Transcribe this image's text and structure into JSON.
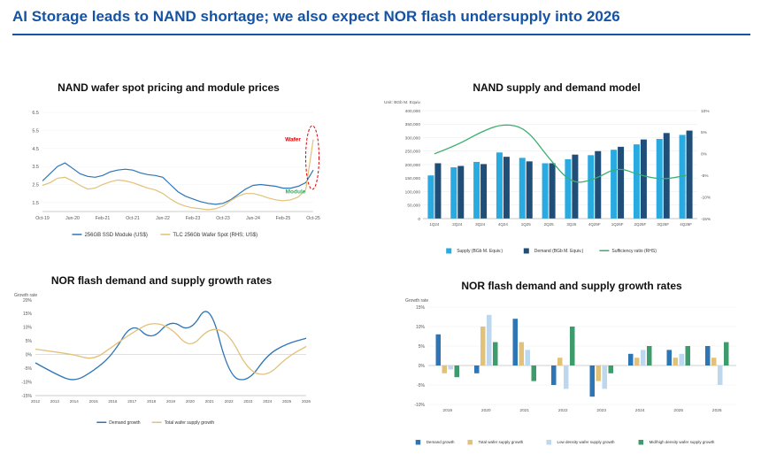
{
  "page": {
    "title": "AI Storage leads to NAND shortage; we also expect NOR flash undersupply into 2026"
  },
  "colors": {
    "title_blue": "#1553A5",
    "module_blue": "#2E75B6",
    "wafer_yellow": "#E2C178",
    "supply_light_blue": "#29ABE2",
    "demand_dark_blue": "#1F4E79",
    "sufficiency_green": "#3BAE6E",
    "annotation_red": "#E00000",
    "low_density_light_blue": "#BDD7EE",
    "mid_high_green": "#3E9B6C"
  },
  "chart_data": [
    {
      "id": "nand-wafer-module-pricing",
      "type": "line",
      "title": "NAND wafer spot pricing and module prices",
      "x": [
        "Oct-19",
        "Dec-19",
        "Feb-20",
        "Apr-20",
        "Jun-20",
        "Aug-20",
        "Oct-20",
        "Dec-20",
        "Feb-21",
        "Apr-21",
        "Jun-21",
        "Aug-21",
        "Oct-21",
        "Dec-21",
        "Feb-22",
        "Apr-22",
        "Jun-22",
        "Aug-22",
        "Oct-22",
        "Dec-22",
        "Feb-23",
        "Apr-23",
        "Jun-23",
        "Aug-23",
        "Oct-23",
        "Dec-23",
        "Feb-24",
        "Apr-24",
        "Jun-24",
        "Aug-24",
        "Oct-24",
        "Dec-24",
        "Feb-25",
        "Apr-25",
        "Jun-25",
        "Aug-25",
        "Oct-25"
      ],
      "x_tick_every": 4,
      "y_ticks": [
        1.5,
        2.5,
        3.5,
        4.5,
        5.5,
        6.5
      ],
      "ylim": [
        1.0,
        6.8
      ],
      "grid": false,
      "legend_position": "bottom",
      "series": [
        {
          "name": "256GB SSD Module (US$)",
          "color": "#2E75B6",
          "values": [
            2.7,
            3.1,
            3.5,
            3.7,
            3.4,
            3.1,
            2.95,
            2.9,
            3.0,
            3.2,
            3.3,
            3.35,
            3.3,
            3.15,
            3.05,
            3.0,
            2.9,
            2.5,
            2.1,
            1.85,
            1.7,
            1.55,
            1.45,
            1.4,
            1.45,
            1.65,
            1.95,
            2.25,
            2.45,
            2.5,
            2.45,
            2.4,
            2.3,
            2.3,
            2.4,
            2.6,
            3.3
          ]
        },
        {
          "name": "TLC 256Gb Wafer Spot (RHS; US$)",
          "color": "#E2C178",
          "values": [
            2.45,
            2.6,
            2.85,
            2.9,
            2.7,
            2.45,
            2.25,
            2.3,
            2.5,
            2.65,
            2.75,
            2.7,
            2.6,
            2.45,
            2.3,
            2.2,
            2.0,
            1.7,
            1.45,
            1.3,
            1.2,
            1.15,
            1.1,
            1.15,
            1.3,
            1.6,
            1.85,
            2.0,
            2.0,
            1.9,
            1.75,
            1.65,
            1.6,
            1.65,
            1.8,
            2.2,
            5.0
          ]
        }
      ],
      "annotations": [
        {
          "text": "Wafer",
          "color": "#E00000"
        },
        {
          "text": "Module",
          "color": "#2FAE5B"
        }
      ]
    },
    {
      "id": "nand-supply-demand-model",
      "type": "bar-line",
      "title": "NAND supply and demand model",
      "unit_label": "Unit: BGb M. Equiv.",
      "categories": [
        "1Q24",
        "2Q24",
        "3Q24",
        "4Q24",
        "1Q25",
        "2Q25",
        "3Q25",
        "4Q25F",
        "1Q26F",
        "2Q26F",
        "3Q26F",
        "4Q26F"
      ],
      "left_ticks": [
        "0",
        "50,000",
        "100,000",
        "150,000",
        "200,000",
        "250,000",
        "300,000",
        "350,000",
        "400,000"
      ],
      "left_max": 400000,
      "right_ticks": [
        "-15%",
        "-10%",
        "-5%",
        "0%",
        "5%",
        "10%"
      ],
      "right_lim": [
        -15,
        10
      ],
      "grid": true,
      "legend_position": "bottom",
      "series": [
        {
          "name": "Supply (BGb M. Equiv.)",
          "type": "bar",
          "color": "#29ABE2",
          "values": [
            160000,
            190000,
            210000,
            245000,
            225000,
            205000,
            220000,
            235000,
            255000,
            275000,
            295000,
            310000
          ]
        },
        {
          "name": "Demand (BGb M. Equiv.)",
          "type": "bar",
          "color": "#1F4E79",
          "values": [
            205000,
            195000,
            202000,
            229000,
            212000,
            205000,
            237000,
            250000,
            266000,
            293000,
            317000,
            326000
          ]
        },
        {
          "name": "Sufficiency ratio (RHS)",
          "type": "line",
          "axis": "right",
          "color": "#3BAE6E",
          "values": [
            0,
            2,
            5,
            7,
            6,
            -1,
            -7,
            -6,
            -3,
            -5,
            -6,
            -5
          ]
        }
      ]
    },
    {
      "id": "nor-growth-lines",
      "type": "line",
      "title": "NOR flash demand and supply growth rates",
      "ylabel": "Growth rate",
      "x": [
        "2012",
        "2013",
        "2014",
        "2015",
        "2016",
        "2017",
        "2018",
        "2019",
        "2020",
        "2021",
        "2022",
        "2023",
        "2024",
        "2025",
        "2026"
      ],
      "y_ticks": [
        "-15%",
        "-10%",
        "-5%",
        "0%",
        "5%",
        "10%",
        "15%",
        "20%"
      ],
      "ylim": [
        -15,
        20
      ],
      "grid": false,
      "legend_position": "bottom",
      "series": [
        {
          "name": "Demand growth",
          "color": "#2E75B6",
          "values": [
            -3,
            -7,
            -10,
            -6,
            0,
            12,
            5,
            13,
            8,
            20,
            -8,
            -10,
            0,
            4,
            6
          ]
        },
        {
          "name": "Total wafer supply growth",
          "color": "#E2C178",
          "values": [
            2,
            1,
            0,
            -2,
            3,
            8,
            12,
            10,
            2,
            10,
            8,
            -6,
            -8,
            -1,
            3
          ]
        }
      ]
    },
    {
      "id": "nor-growth-bars",
      "type": "bar",
      "title": "NOR flash demand and supply growth rates",
      "ylabel": "Growth rate",
      "categories": [
        "2019",
        "2020",
        "2021",
        "2022",
        "2023",
        "2024",
        "2025",
        "2026"
      ],
      "y_ticks": [
        "-10%",
        "-5%",
        "0%",
        "5%",
        "10%",
        "15%"
      ],
      "ylim": [
        -10,
        15
      ],
      "grid": true,
      "legend_position": "bottom",
      "series": [
        {
          "name": "Demand growth",
          "color": "#2E75B6",
          "values": [
            8,
            -2,
            12,
            -5,
            -8,
            3,
            4,
            5
          ]
        },
        {
          "name": "Total wafer supply growth",
          "color": "#E2C178",
          "values": [
            -2,
            10,
            6,
            2,
            -4,
            2,
            2,
            2
          ]
        },
        {
          "name": "Low density wafer supply growth",
          "color": "#BDD7EE",
          "values": [
            -1,
            13,
            4,
            -6,
            -6,
            4,
            3,
            -5
          ]
        },
        {
          "name": "Mid/high density wafer supply growth",
          "color": "#3E9B6C",
          "values": [
            -3,
            6,
            -4,
            10,
            -2,
            5,
            5,
            6
          ]
        }
      ]
    }
  ]
}
